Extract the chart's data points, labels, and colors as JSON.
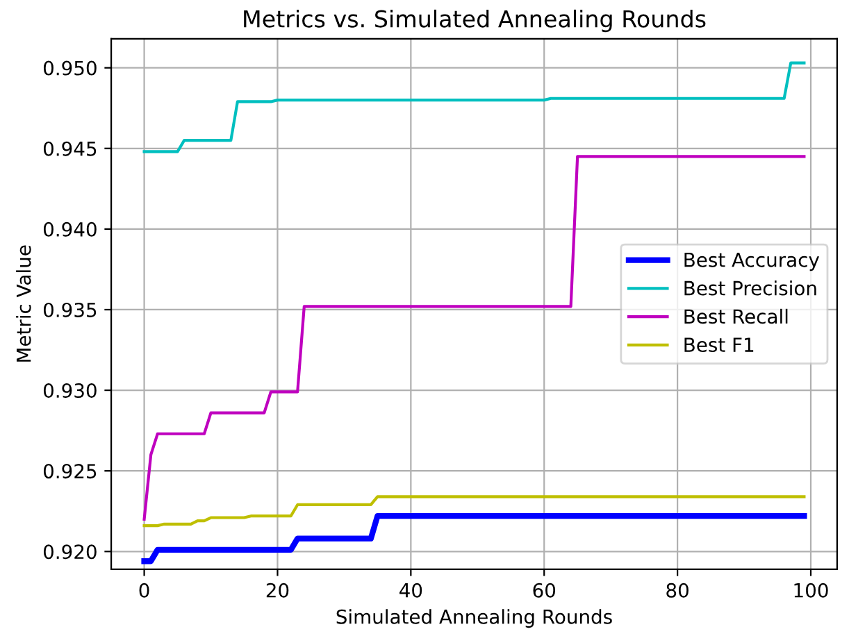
{
  "chart_data": {
    "type": "line",
    "title": "Metrics vs. Simulated Annealing Rounds",
    "xlabel": "Simulated Annealing Rounds",
    "ylabel": "Metric Value",
    "series": [
      {
        "name": "Best Accuracy",
        "color": "#0000ff",
        "x": [
          0,
          1,
          2,
          22,
          23,
          34,
          35,
          99
        ],
        "values": [
          0.9194,
          0.9194,
          0.9201,
          0.9201,
          0.9208,
          0.9208,
          0.9222,
          0.9222
        ]
      },
      {
        "name": "Best Precision",
        "color": "#00bfbf",
        "x": [
          0,
          5,
          6,
          13,
          14,
          19,
          20,
          60,
          61,
          96,
          97,
          99
        ],
        "values": [
          0.9448,
          0.9448,
          0.9455,
          0.9455,
          0.9479,
          0.9479,
          0.948,
          0.948,
          0.9481,
          0.9481,
          0.9503,
          0.9503
        ]
      },
      {
        "name": "Best Recall",
        "color": "#bf00bf",
        "x": [
          0,
          1,
          2,
          9,
          10,
          18,
          19,
          23,
          24,
          64,
          65,
          99
        ],
        "values": [
          0.922,
          0.926,
          0.9273,
          0.9273,
          0.9286,
          0.9286,
          0.9299,
          0.9299,
          0.9352,
          0.9352,
          0.9445,
          0.9445
        ]
      },
      {
        "name": "Best F1",
        "color": "#bfbf00",
        "x": [
          0,
          2,
          3,
          7,
          8,
          9,
          10,
          15,
          16,
          22,
          23,
          34,
          35,
          99
        ],
        "values": [
          0.9216,
          0.9216,
          0.9217,
          0.9217,
          0.9219,
          0.9219,
          0.9221,
          0.9221,
          0.9222,
          0.9222,
          0.9229,
          0.9229,
          0.9234,
          0.9234
        ]
      }
    ],
    "xlim": [
      -4.95,
      103.95
    ],
    "ylim": [
      0.9189,
      0.9518
    ],
    "xticks": [
      0,
      20,
      40,
      60,
      80,
      100
    ],
    "yticks": [
      {
        "value": 0.92,
        "label": "0.920"
      },
      {
        "value": 0.925,
        "label": "0.925"
      },
      {
        "value": 0.93,
        "label": "0.930"
      },
      {
        "value": 0.935,
        "label": "0.935"
      },
      {
        "value": 0.94,
        "label": "0.940"
      },
      {
        "value": 0.945,
        "label": "0.945"
      },
      {
        "value": 0.95,
        "label": "0.950"
      }
    ],
    "grid": true,
    "legend": "center right"
  }
}
